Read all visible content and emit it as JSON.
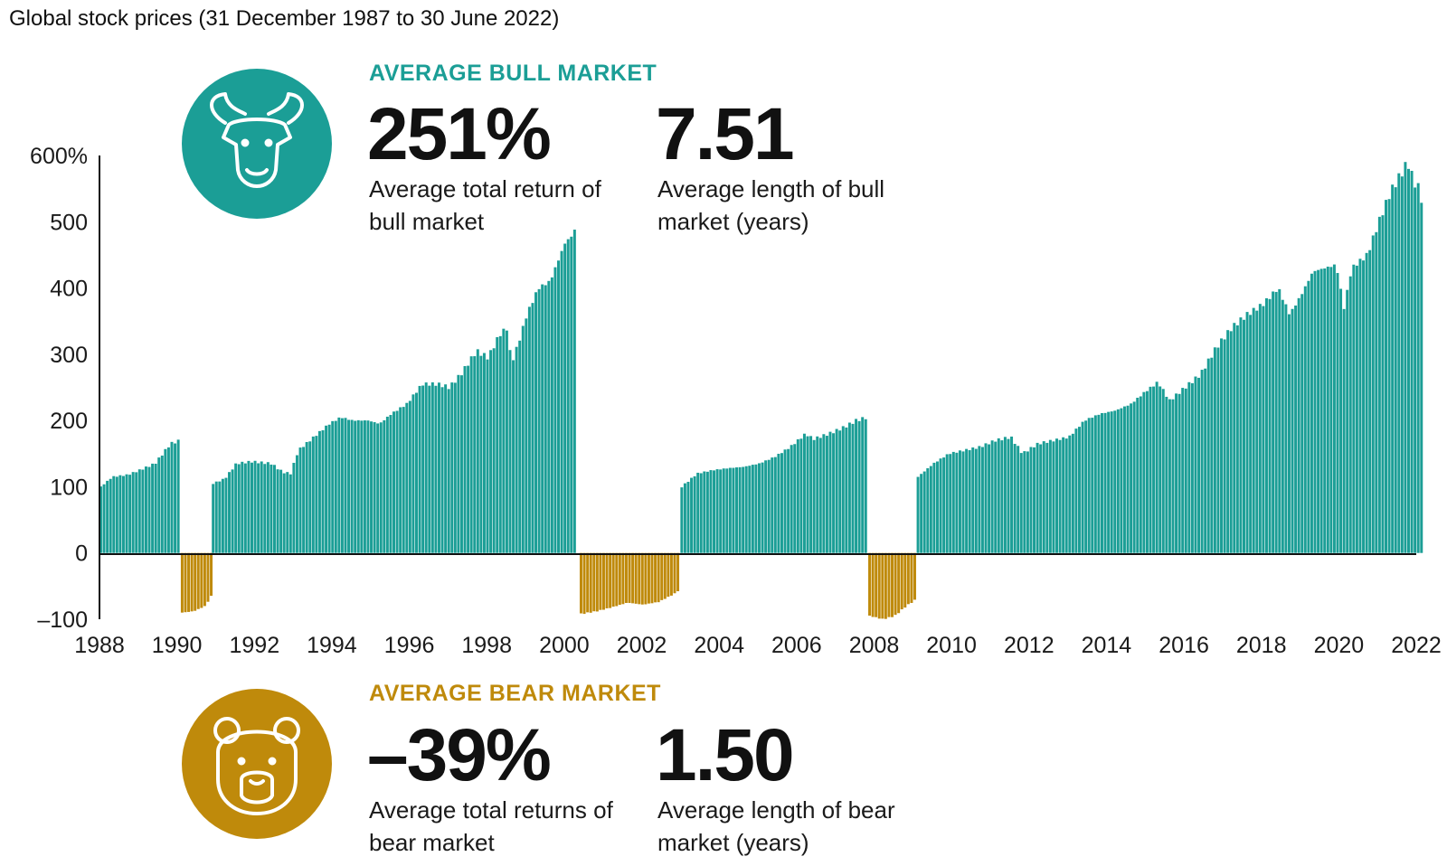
{
  "title": "Global stock prices (31 December 1987 to 30 June 2022)",
  "bull": {
    "heading": "AVERAGE BULL MARKET",
    "return_value": "251%",
    "return_caption": "Average total return of bull market",
    "length_value": "7.51",
    "length_caption": "Average length of bull market (years)",
    "icon": "bull-icon",
    "color": "#1b9e96"
  },
  "bear": {
    "heading": "AVERAGE BEAR MARKET",
    "return_value": "–39%",
    "return_caption": "Average total returns of bear market",
    "length_value": "1.50",
    "length_caption": "Average length of bear market (years)",
    "icon": "bear-icon",
    "color": "#bf8a0b"
  },
  "chart_data": {
    "type": "bar",
    "title": "Global stock prices (31 December 1987 to 30 June 2022)",
    "xlabel": "",
    "ylabel": "",
    "xlim": [
      1988.0,
      2022.0
    ],
    "ylim": [
      -100,
      600
    ],
    "y_ticks": [
      {
        "value": 600,
        "label": "600%"
      },
      {
        "value": 500,
        "label": "500"
      },
      {
        "value": 400,
        "label": "400"
      },
      {
        "value": 300,
        "label": "300"
      },
      {
        "value": 200,
        "label": "200"
      },
      {
        "value": 100,
        "label": "100"
      },
      {
        "value": 0,
        "label": "0"
      },
      {
        "value": -100,
        "label": "–100"
      }
    ],
    "x_ticks": [
      "1988",
      "1990",
      "1992",
      "1994",
      "1996",
      "1998",
      "2000",
      "2002",
      "2004",
      "2006",
      "2008",
      "2010",
      "2012",
      "2014",
      "2016",
      "2018",
      "2020",
      "2022"
    ],
    "grid": false,
    "series": [
      {
        "market": "bull",
        "color": "#1b9e96",
        "points": [
          [
            1988.0,
            100
          ],
          [
            1988.3,
            115
          ],
          [
            1988.7,
            118
          ],
          [
            1989.0,
            125
          ],
          [
            1989.4,
            135
          ],
          [
            1989.8,
            165
          ],
          [
            1990.05,
            170
          ]
        ]
      },
      {
        "market": "bear",
        "color": "#bf8a0b",
        "points": [
          [
            1990.1,
            -90
          ],
          [
            1990.4,
            -88
          ],
          [
            1990.7,
            -80
          ],
          [
            1990.85,
            -65
          ]
        ]
      },
      {
        "market": "bull",
        "color": "#1b9e96",
        "points": [
          [
            1990.9,
            105
          ],
          [
            1991.2,
            112
          ],
          [
            1991.5,
            135
          ],
          [
            1991.9,
            138
          ],
          [
            1992.4,
            135
          ],
          [
            1992.7,
            122
          ],
          [
            1992.9,
            120
          ],
          [
            1993.1,
            155
          ],
          [
            1993.5,
            175
          ],
          [
            1993.9,
            195
          ],
          [
            1994.2,
            205
          ],
          [
            1994.5,
            200
          ],
          [
            1994.9,
            200
          ],
          [
            1995.2,
            195
          ],
          [
            1995.5,
            210
          ],
          [
            1995.9,
            225
          ],
          [
            1996.3,
            255
          ],
          [
            1996.7,
            255
          ],
          [
            1997.0,
            250
          ],
          [
            1997.3,
            270
          ],
          [
            1997.7,
            305
          ],
          [
            1998.0,
            295
          ],
          [
            1998.3,
            330
          ],
          [
            1998.5,
            340
          ],
          [
            1998.6,
            285
          ],
          [
            1998.8,
            320
          ],
          [
            1999.0,
            360
          ],
          [
            1999.3,
            400
          ],
          [
            1999.6,
            410
          ],
          [
            1999.8,
            440
          ],
          [
            2000.0,
            470
          ],
          [
            2000.2,
            480
          ],
          [
            2000.3,
            505
          ]
        ]
      },
      {
        "market": "bear",
        "color": "#bf8a0b",
        "points": [
          [
            2000.4,
            -92
          ],
          [
            2000.8,
            -88
          ],
          [
            2001.2,
            -82
          ],
          [
            2001.6,
            -75
          ],
          [
            2002.0,
            -78
          ],
          [
            2002.4,
            -74
          ],
          [
            2002.8,
            -62
          ],
          [
            2002.95,
            -55
          ]
        ]
      },
      {
        "market": "bull",
        "color": "#1b9e96",
        "points": [
          [
            2003.0,
            100
          ],
          [
            2003.4,
            120
          ],
          [
            2003.8,
            125
          ],
          [
            2004.2,
            128
          ],
          [
            2004.6,
            130
          ],
          [
            2005.0,
            135
          ],
          [
            2005.4,
            145
          ],
          [
            2005.8,
            160
          ],
          [
            2006.2,
            180
          ],
          [
            2006.4,
            172
          ],
          [
            2006.8,
            180
          ],
          [
            2007.2,
            190
          ],
          [
            2007.5,
            200
          ],
          [
            2007.8,
            205
          ]
        ]
      },
      {
        "market": "bear",
        "color": "#bf8a0b",
        "points": [
          [
            2007.85,
            -95
          ],
          [
            2008.2,
            -100
          ],
          [
            2008.5,
            -95
          ],
          [
            2008.8,
            -80
          ],
          [
            2009.05,
            -70
          ]
        ]
      },
      {
        "market": "bull",
        "color": "#1b9e96",
        "points": [
          [
            2009.1,
            115
          ],
          [
            2009.5,
            135
          ],
          [
            2009.9,
            150
          ],
          [
            2010.3,
            155
          ],
          [
            2010.7,
            160
          ],
          [
            2011.1,
            170
          ],
          [
            2011.5,
            175
          ],
          [
            2011.8,
            150
          ],
          [
            2012.2,
            165
          ],
          [
            2012.6,
            170
          ],
          [
            2013.0,
            175
          ],
          [
            2013.4,
            200
          ],
          [
            2013.8,
            210
          ],
          [
            2014.2,
            215
          ],
          [
            2014.6,
            225
          ],
          [
            2015.0,
            245
          ],
          [
            2015.3,
            258
          ],
          [
            2015.6,
            230
          ],
          [
            2016.0,
            250
          ],
          [
            2016.4,
            270
          ],
          [
            2016.8,
            310
          ],
          [
            2017.2,
            340
          ],
          [
            2017.6,
            360
          ],
          [
            2018.0,
            375
          ],
          [
            2018.4,
            400
          ],
          [
            2018.7,
            360
          ],
          [
            2019.0,
            390
          ],
          [
            2019.3,
            425
          ],
          [
            2019.6,
            430
          ],
          [
            2019.9,
            435
          ],
          [
            2020.1,
            370
          ],
          [
            2020.3,
            430
          ],
          [
            2020.7,
            450
          ],
          [
            2021.0,
            500
          ],
          [
            2021.3,
            545
          ],
          [
            2021.6,
            575
          ],
          [
            2021.75,
            590
          ],
          [
            2021.9,
            560
          ],
          [
            2022.0,
            555
          ],
          [
            2022.1,
            535
          ]
        ]
      }
    ]
  }
}
